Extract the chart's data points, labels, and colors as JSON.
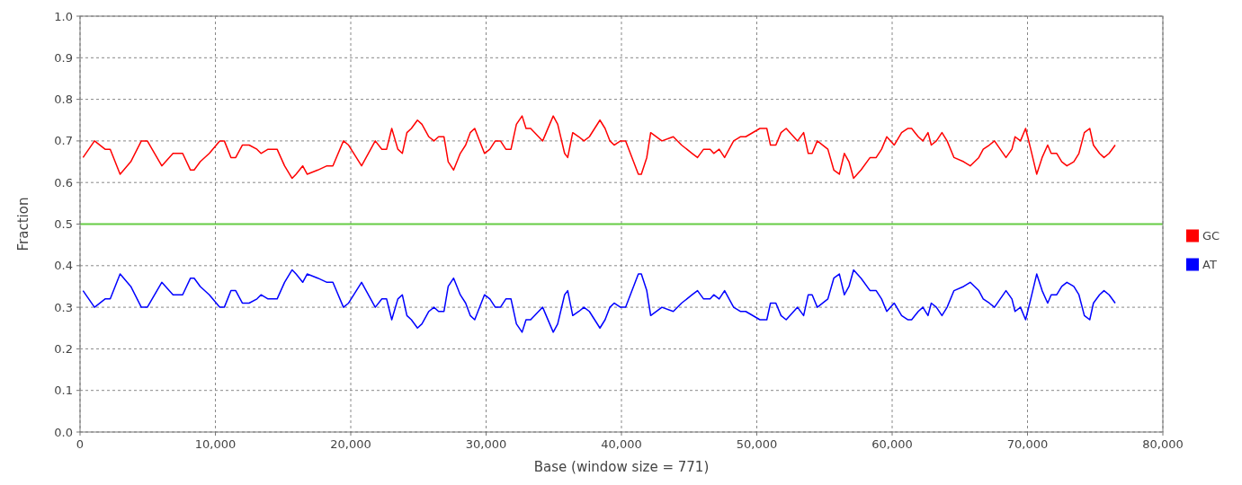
{
  "chart_data": {
    "type": "line",
    "xlabel": "Base (window size = 771)",
    "ylabel": "Fraction",
    "x": [
      220,
      1070,
      1850,
      2230,
      2960,
      3750,
      4530,
      4970,
      6040,
      6870,
      7420,
      7580,
      8160,
      8430,
      8880,
      9550,
      10320,
      10660,
      11150,
      11500,
      11990,
      12490,
      13070,
      13370,
      13890,
      14230,
      14560,
      15110,
      15670,
      15960,
      16450,
      16780,
      17570,
      18240,
      18680,
      19460,
      19840,
      20800,
      21810,
      22300,
      22650,
      23030,
      23480,
      23810,
      24150,
      24480,
      24930,
      25260,
      25770,
      26150,
      26490,
      26890,
      27200,
      27600,
      28090,
      28490,
      28830,
      29160,
      29880,
      30280,
      30680,
      31060,
      31460,
      31840,
      32240,
      32660,
      32950,
      33290,
      34180,
      34960,
      35290,
      35800,
      36030,
      36400,
      36850,
      37230,
      37630,
      38410,
      38790,
      39150,
      39460,
      39930,
      40310,
      41250,
      41470,
      41870,
      42160,
      42990,
      43830,
      44440,
      45220,
      45620,
      46070,
      46550,
      46820,
      47220,
      47620,
      48290,
      48780,
      49180,
      50230,
      50740,
      51010,
      51410,
      51790,
      52170,
      53010,
      53460,
      53800,
      54090,
      54470,
      55250,
      55690,
      56100,
      56470,
      56810,
      57150,
      57700,
      58370,
      58820,
      59220,
      59600,
      60150,
      60700,
      61150,
      61440,
      61930,
      62270,
      62650,
      62890,
      63270,
      63680,
      64060,
      64570,
      65280,
      65770,
      66400,
      66730,
      67180,
      67560,
      68410,
      68850,
      69080,
      69480,
      69860,
      70240,
      70680,
      71080,
      71490,
      71750,
      72160,
      72530,
      72910,
      73420,
      73800,
      74200,
      74600,
      74870,
      75320,
      75650,
      76030,
      76480
    ],
    "series": [
      {
        "name": "GC",
        "color": "#ff0000",
        "values": [
          0.66,
          0.7,
          0.68,
          0.68,
          0.62,
          0.65,
          0.7,
          0.7,
          0.64,
          0.67,
          0.67,
          0.67,
          0.63,
          0.63,
          0.65,
          0.67,
          0.7,
          0.7,
          0.66,
          0.66,
          0.69,
          0.69,
          0.68,
          0.67,
          0.68,
          0.68,
          0.68,
          0.64,
          0.61,
          0.62,
          0.64,
          0.62,
          0.63,
          0.64,
          0.64,
          0.7,
          0.69,
          0.64,
          0.7,
          0.68,
          0.68,
          0.73,
          0.68,
          0.67,
          0.72,
          0.73,
          0.75,
          0.74,
          0.71,
          0.7,
          0.71,
          0.71,
          0.65,
          0.63,
          0.67,
          0.69,
          0.72,
          0.73,
          0.67,
          0.68,
          0.7,
          0.7,
          0.68,
          0.68,
          0.74,
          0.76,
          0.73,
          0.73,
          0.7,
          0.76,
          0.74,
          0.67,
          0.66,
          0.72,
          0.71,
          0.7,
          0.71,
          0.75,
          0.73,
          0.7,
          0.69,
          0.7,
          0.7,
          0.62,
          0.62,
          0.66,
          0.72,
          0.7,
          0.71,
          0.69,
          0.67,
          0.66,
          0.68,
          0.68,
          0.67,
          0.68,
          0.66,
          0.7,
          0.71,
          0.71,
          0.73,
          0.73,
          0.69,
          0.69,
          0.72,
          0.73,
          0.7,
          0.72,
          0.67,
          0.67,
          0.7,
          0.68,
          0.63,
          0.62,
          0.67,
          0.65,
          0.61,
          0.63,
          0.66,
          0.66,
          0.68,
          0.71,
          0.69,
          0.72,
          0.73,
          0.73,
          0.71,
          0.7,
          0.72,
          0.69,
          0.7,
          0.72,
          0.7,
          0.66,
          0.65,
          0.64,
          0.66,
          0.68,
          0.69,
          0.7,
          0.66,
          0.68,
          0.71,
          0.7,
          0.73,
          0.68,
          0.62,
          0.66,
          0.69,
          0.67,
          0.67,
          0.65,
          0.64,
          0.65,
          0.67,
          0.72,
          0.73,
          0.69,
          0.67,
          0.66,
          0.67,
          0.69
        ]
      },
      {
        "name": "AT",
        "color": "#0000ff",
        "values": [
          0.34,
          0.3,
          0.32,
          0.32,
          0.38,
          0.35,
          0.3,
          0.3,
          0.36,
          0.33,
          0.33,
          0.33,
          0.37,
          0.37,
          0.35,
          0.33,
          0.3,
          0.3,
          0.34,
          0.34,
          0.31,
          0.31,
          0.32,
          0.33,
          0.32,
          0.32,
          0.32,
          0.36,
          0.39,
          0.38,
          0.36,
          0.38,
          0.37,
          0.36,
          0.36,
          0.3,
          0.31,
          0.36,
          0.3,
          0.32,
          0.32,
          0.27,
          0.32,
          0.33,
          0.28,
          0.27,
          0.25,
          0.26,
          0.29,
          0.3,
          0.29,
          0.29,
          0.35,
          0.37,
          0.33,
          0.31,
          0.28,
          0.27,
          0.33,
          0.32,
          0.3,
          0.3,
          0.32,
          0.32,
          0.26,
          0.24,
          0.27,
          0.27,
          0.3,
          0.24,
          0.26,
          0.33,
          0.34,
          0.28,
          0.29,
          0.3,
          0.29,
          0.25,
          0.27,
          0.3,
          0.31,
          0.3,
          0.3,
          0.38,
          0.38,
          0.34,
          0.28,
          0.3,
          0.29,
          0.31,
          0.33,
          0.34,
          0.32,
          0.32,
          0.33,
          0.32,
          0.34,
          0.3,
          0.29,
          0.29,
          0.27,
          0.27,
          0.31,
          0.31,
          0.28,
          0.27,
          0.3,
          0.28,
          0.33,
          0.33,
          0.3,
          0.32,
          0.37,
          0.38,
          0.33,
          0.35,
          0.39,
          0.37,
          0.34,
          0.34,
          0.32,
          0.29,
          0.31,
          0.28,
          0.27,
          0.27,
          0.29,
          0.3,
          0.28,
          0.31,
          0.3,
          0.28,
          0.3,
          0.34,
          0.35,
          0.36,
          0.34,
          0.32,
          0.31,
          0.3,
          0.34,
          0.32,
          0.29,
          0.3,
          0.27,
          0.32,
          0.38,
          0.34,
          0.31,
          0.33,
          0.33,
          0.35,
          0.36,
          0.35,
          0.33,
          0.28,
          0.27,
          0.31,
          0.33,
          0.34,
          0.33,
          0.31
        ]
      }
    ],
    "xlim": [
      0,
      80000
    ],
    "xticks": [
      {
        "value": 0,
        "label": "0"
      },
      {
        "value": 10000,
        "label": "10,000"
      },
      {
        "value": 20000,
        "label": "20,000"
      },
      {
        "value": 30000,
        "label": "30,000"
      },
      {
        "value": 40000,
        "label": "40,000"
      },
      {
        "value": 50000,
        "label": "50,000"
      },
      {
        "value": 60000,
        "label": "60,000"
      },
      {
        "value": 70000,
        "label": "70,000"
      },
      {
        "value": 80000,
        "label": "80,000"
      }
    ],
    "ylim": [
      0,
      1
    ],
    "yticks": [
      {
        "value": 0,
        "label": "0.0"
      },
      {
        "value": 0.1,
        "label": "0.1"
      },
      {
        "value": 0.2,
        "label": "0.2"
      },
      {
        "value": 0.3,
        "label": "0.3"
      },
      {
        "value": 0.4,
        "label": "0.4"
      },
      {
        "value": 0.5,
        "label": "0.5"
      },
      {
        "value": 0.6,
        "label": "0.6"
      },
      {
        "value": 0.7,
        "label": "0.7"
      },
      {
        "value": 0.8,
        "label": "0.8"
      },
      {
        "value": 0.9,
        "label": "0.9"
      },
      {
        "value": 1,
        "label": "1.0"
      }
    ],
    "ref_lines": [
      {
        "axis": "y",
        "value": 0.5,
        "color": "#66cc44"
      }
    ],
    "grid": true,
    "legend": "right",
    "marker": "none",
    "line_style": "solid"
  }
}
